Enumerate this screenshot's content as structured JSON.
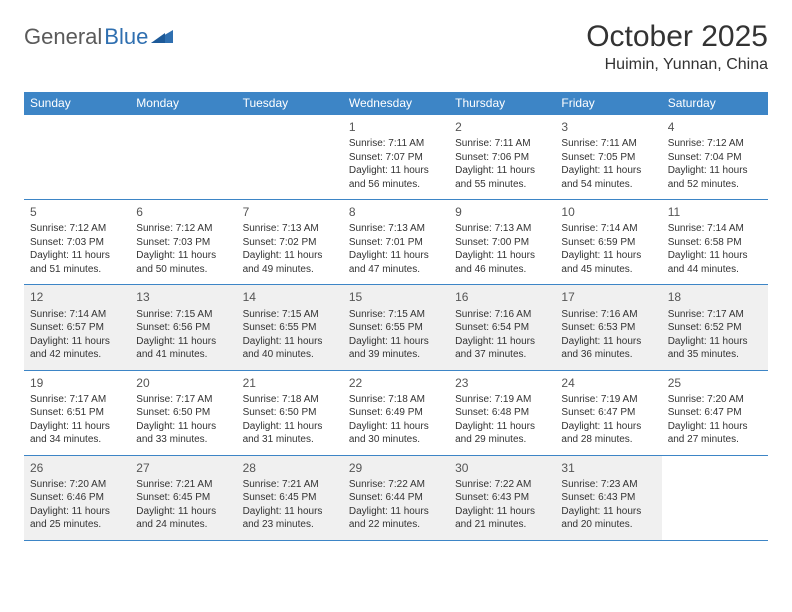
{
  "logo": {
    "word1": "General",
    "word2": "Blue"
  },
  "title": "October 2025",
  "location": "Huimin, Yunnan, China",
  "colors": {
    "header_bg": "#3d85c6",
    "header_text": "#ffffff",
    "alt_row_bg": "#f0f0f0",
    "border": "#3d85c6",
    "text": "#333333"
  },
  "day_headers": [
    "Sunday",
    "Monday",
    "Tuesday",
    "Wednesday",
    "Thursday",
    "Friday",
    "Saturday"
  ],
  "weeks": [
    [
      null,
      null,
      null,
      {
        "n": "1",
        "sr": "Sunrise: 7:11 AM",
        "ss": "Sunset: 7:07 PM",
        "dl": "Daylight: 11 hours and 56 minutes."
      },
      {
        "n": "2",
        "sr": "Sunrise: 7:11 AM",
        "ss": "Sunset: 7:06 PM",
        "dl": "Daylight: 11 hours and 55 minutes."
      },
      {
        "n": "3",
        "sr": "Sunrise: 7:11 AM",
        "ss": "Sunset: 7:05 PM",
        "dl": "Daylight: 11 hours and 54 minutes."
      },
      {
        "n": "4",
        "sr": "Sunrise: 7:12 AM",
        "ss": "Sunset: 7:04 PM",
        "dl": "Daylight: 11 hours and 52 minutes."
      }
    ],
    [
      {
        "n": "5",
        "sr": "Sunrise: 7:12 AM",
        "ss": "Sunset: 7:03 PM",
        "dl": "Daylight: 11 hours and 51 minutes."
      },
      {
        "n": "6",
        "sr": "Sunrise: 7:12 AM",
        "ss": "Sunset: 7:03 PM",
        "dl": "Daylight: 11 hours and 50 minutes."
      },
      {
        "n": "7",
        "sr": "Sunrise: 7:13 AM",
        "ss": "Sunset: 7:02 PM",
        "dl": "Daylight: 11 hours and 49 minutes."
      },
      {
        "n": "8",
        "sr": "Sunrise: 7:13 AM",
        "ss": "Sunset: 7:01 PM",
        "dl": "Daylight: 11 hours and 47 minutes."
      },
      {
        "n": "9",
        "sr": "Sunrise: 7:13 AM",
        "ss": "Sunset: 7:00 PM",
        "dl": "Daylight: 11 hours and 46 minutes."
      },
      {
        "n": "10",
        "sr": "Sunrise: 7:14 AM",
        "ss": "Sunset: 6:59 PM",
        "dl": "Daylight: 11 hours and 45 minutes."
      },
      {
        "n": "11",
        "sr": "Sunrise: 7:14 AM",
        "ss": "Sunset: 6:58 PM",
        "dl": "Daylight: 11 hours and 44 minutes."
      }
    ],
    [
      {
        "n": "12",
        "sr": "Sunrise: 7:14 AM",
        "ss": "Sunset: 6:57 PM",
        "dl": "Daylight: 11 hours and 42 minutes."
      },
      {
        "n": "13",
        "sr": "Sunrise: 7:15 AM",
        "ss": "Sunset: 6:56 PM",
        "dl": "Daylight: 11 hours and 41 minutes."
      },
      {
        "n": "14",
        "sr": "Sunrise: 7:15 AM",
        "ss": "Sunset: 6:55 PM",
        "dl": "Daylight: 11 hours and 40 minutes."
      },
      {
        "n": "15",
        "sr": "Sunrise: 7:15 AM",
        "ss": "Sunset: 6:55 PM",
        "dl": "Daylight: 11 hours and 39 minutes."
      },
      {
        "n": "16",
        "sr": "Sunrise: 7:16 AM",
        "ss": "Sunset: 6:54 PM",
        "dl": "Daylight: 11 hours and 37 minutes."
      },
      {
        "n": "17",
        "sr": "Sunrise: 7:16 AM",
        "ss": "Sunset: 6:53 PM",
        "dl": "Daylight: 11 hours and 36 minutes."
      },
      {
        "n": "18",
        "sr": "Sunrise: 7:17 AM",
        "ss": "Sunset: 6:52 PM",
        "dl": "Daylight: 11 hours and 35 minutes."
      }
    ],
    [
      {
        "n": "19",
        "sr": "Sunrise: 7:17 AM",
        "ss": "Sunset: 6:51 PM",
        "dl": "Daylight: 11 hours and 34 minutes."
      },
      {
        "n": "20",
        "sr": "Sunrise: 7:17 AM",
        "ss": "Sunset: 6:50 PM",
        "dl": "Daylight: 11 hours and 33 minutes."
      },
      {
        "n": "21",
        "sr": "Sunrise: 7:18 AM",
        "ss": "Sunset: 6:50 PM",
        "dl": "Daylight: 11 hours and 31 minutes."
      },
      {
        "n": "22",
        "sr": "Sunrise: 7:18 AM",
        "ss": "Sunset: 6:49 PM",
        "dl": "Daylight: 11 hours and 30 minutes."
      },
      {
        "n": "23",
        "sr": "Sunrise: 7:19 AM",
        "ss": "Sunset: 6:48 PM",
        "dl": "Daylight: 11 hours and 29 minutes."
      },
      {
        "n": "24",
        "sr": "Sunrise: 7:19 AM",
        "ss": "Sunset: 6:47 PM",
        "dl": "Daylight: 11 hours and 28 minutes."
      },
      {
        "n": "25",
        "sr": "Sunrise: 7:20 AM",
        "ss": "Sunset: 6:47 PM",
        "dl": "Daylight: 11 hours and 27 minutes."
      }
    ],
    [
      {
        "n": "26",
        "sr": "Sunrise: 7:20 AM",
        "ss": "Sunset: 6:46 PM",
        "dl": "Daylight: 11 hours and 25 minutes."
      },
      {
        "n": "27",
        "sr": "Sunrise: 7:21 AM",
        "ss": "Sunset: 6:45 PM",
        "dl": "Daylight: 11 hours and 24 minutes."
      },
      {
        "n": "28",
        "sr": "Sunrise: 7:21 AM",
        "ss": "Sunset: 6:45 PM",
        "dl": "Daylight: 11 hours and 23 minutes."
      },
      {
        "n": "29",
        "sr": "Sunrise: 7:22 AM",
        "ss": "Sunset: 6:44 PM",
        "dl": "Daylight: 11 hours and 22 minutes."
      },
      {
        "n": "30",
        "sr": "Sunrise: 7:22 AM",
        "ss": "Sunset: 6:43 PM",
        "dl": "Daylight: 11 hours and 21 minutes."
      },
      {
        "n": "31",
        "sr": "Sunrise: 7:23 AM",
        "ss": "Sunset: 6:43 PM",
        "dl": "Daylight: 11 hours and 20 minutes."
      },
      null
    ]
  ]
}
